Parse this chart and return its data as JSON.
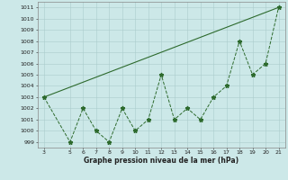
{
  "x": [
    3,
    5,
    6,
    7,
    8,
    9,
    10,
    11,
    12,
    13,
    14,
    15,
    16,
    17,
    18,
    19,
    20,
    21
  ],
  "y": [
    1003,
    999,
    1002,
    1000,
    999,
    1002,
    1000,
    1001,
    1005,
    1001,
    1002,
    1001,
    1003,
    1004,
    1008,
    1005,
    1006,
    1011
  ],
  "trend_x": [
    3,
    21
  ],
  "trend_y": [
    1003,
    1011
  ],
  "xlim": [
    2.5,
    21.5
  ],
  "ylim": [
    998.5,
    1011.5
  ],
  "yticks": [
    999,
    1000,
    1001,
    1002,
    1003,
    1004,
    1005,
    1006,
    1007,
    1008,
    1009,
    1010,
    1011
  ],
  "xticks": [
    3,
    5,
    6,
    7,
    8,
    9,
    10,
    11,
    12,
    13,
    14,
    15,
    16,
    17,
    18,
    19,
    20,
    21
  ],
  "xlabel": "Graphe pression niveau de la mer (hPa)",
  "line_color": "#2d6a2d",
  "bg_color": "#cce8e8",
  "grid_color": "#aacccc",
  "marker": "*",
  "marker_size": 3.5,
  "linewidth": 0.7,
  "tick_fontsize": 4.5,
  "xlabel_fontsize": 5.5
}
